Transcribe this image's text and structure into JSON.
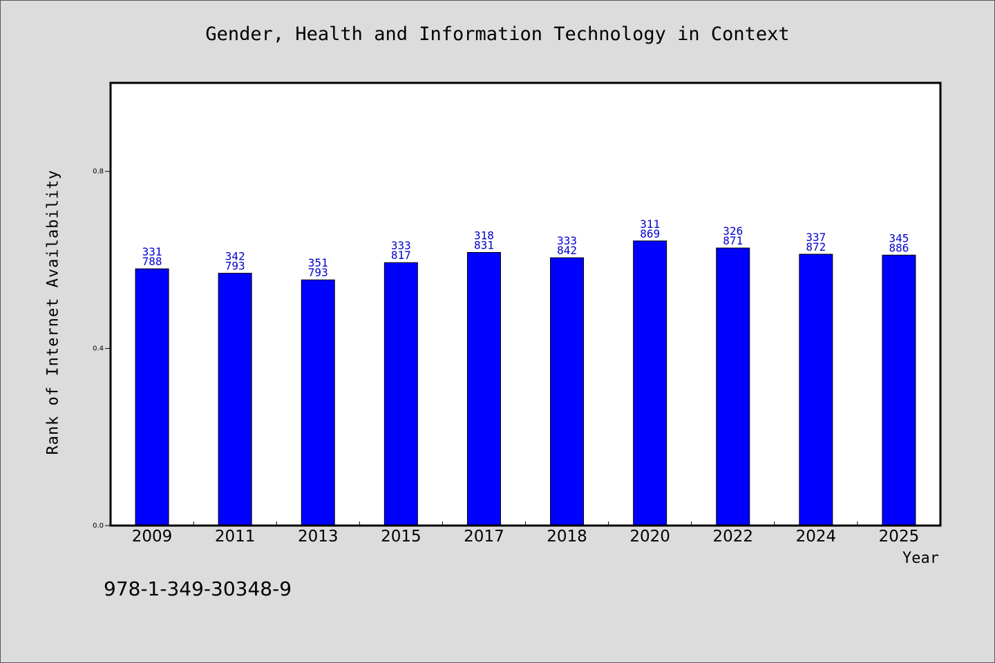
{
  "chart_data": {
    "type": "bar",
    "title": "Gender, Health and Information Technology in Context",
    "xlabel": "Year",
    "ylabel": "Rank of Internet Availability",
    "categories": [
      "2009",
      "2011",
      "2013",
      "2015",
      "2017",
      "2018",
      "2020",
      "2022",
      "2024",
      "2025"
    ],
    "values": [
      0.58,
      0.57,
      0.555,
      0.594,
      0.617,
      0.605,
      0.643,
      0.627,
      0.613,
      0.611
    ],
    "labels_top": [
      "331",
      "342",
      "351",
      "333",
      "318",
      "333",
      "311",
      "326",
      "337",
      "345"
    ],
    "labels_bottom": [
      "788",
      "793",
      "793",
      "817",
      "831",
      "842",
      "869",
      "871",
      "872",
      "886"
    ],
    "ylim": [
      0,
      1.0
    ],
    "yticks": [
      "0.0",
      "0.4",
      "0.8"
    ],
    "ytick_values": [
      0,
      0.4,
      0.8
    ],
    "bar_color": "#0000ff",
    "label_color": "#0000cc",
    "grid": false
  },
  "footer": "978-1-349-30348-9"
}
